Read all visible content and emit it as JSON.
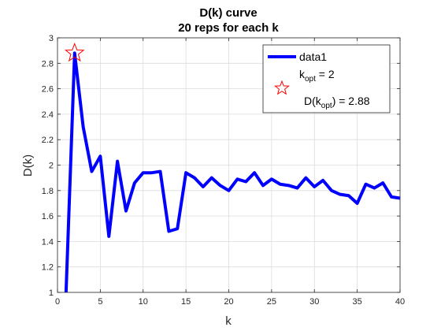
{
  "chart_data": {
    "type": "line",
    "title": [
      "D(k) curve",
      "20 reps for each k"
    ],
    "xlabel": "k",
    "ylabel": "D(k)",
    "xlim": [
      0,
      40
    ],
    "ylim": [
      1,
      3
    ],
    "xticks": [
      0,
      5,
      10,
      15,
      20,
      25,
      30,
      35,
      40
    ],
    "yticks": [
      1,
      1.2,
      1.4,
      1.6,
      1.8,
      2,
      2.2,
      2.4,
      2.6,
      2.8,
      3
    ],
    "grid": true,
    "legend_position": "top-right",
    "series": [
      {
        "name": "data1",
        "color": "#0000ff",
        "x": [
          1,
          2,
          3,
          4,
          5,
          6,
          7,
          8,
          9,
          10,
          11,
          12,
          13,
          14,
          15,
          16,
          17,
          18,
          19,
          20,
          21,
          22,
          23,
          24,
          25,
          26,
          27,
          28,
          29,
          30,
          31,
          32,
          33,
          34,
          35,
          36,
          37,
          38,
          39,
          40
        ],
        "y": [
          1.0,
          2.88,
          2.3,
          1.95,
          2.07,
          1.44,
          2.03,
          1.64,
          1.86,
          1.94,
          1.94,
          1.95,
          1.48,
          1.5,
          1.94,
          1.9,
          1.83,
          1.9,
          1.84,
          1.8,
          1.89,
          1.87,
          1.94,
          1.84,
          1.89,
          1.85,
          1.84,
          1.82,
          1.9,
          1.83,
          1.88,
          1.8,
          1.77,
          1.76,
          1.7,
          1.85,
          1.82,
          1.86,
          1.75,
          1.74
        ]
      }
    ],
    "marker": {
      "x": 2,
      "y": 2.88,
      "color": "#ff0000",
      "legend_lines": [
        {
          "base": "k",
          "sub": "opt",
          "rest": " = 2"
        },
        {
          "base": "D(k",
          "sub": "opt",
          "rest": ") = 2.88"
        }
      ]
    }
  }
}
